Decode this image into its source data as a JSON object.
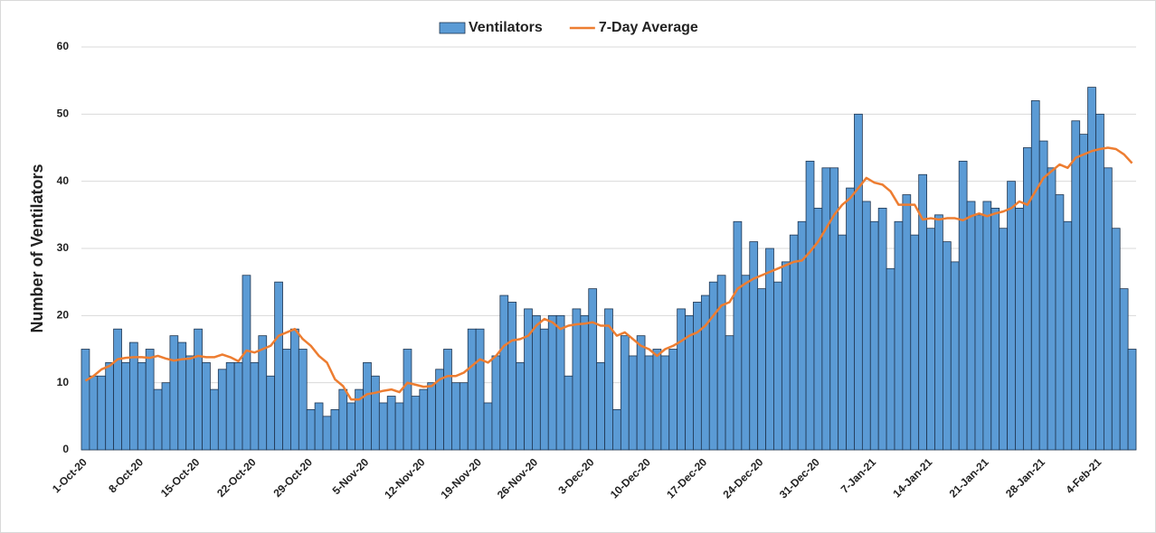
{
  "chart_data": {
    "type": "bar",
    "ylabel": "Number of Ventilators",
    "categories": [
      "1-Oct-20",
      null,
      null,
      null,
      null,
      null,
      null,
      "8-Oct-20",
      null,
      null,
      null,
      null,
      null,
      null,
      "15-Oct-20",
      null,
      null,
      null,
      null,
      null,
      null,
      "22-Oct-20",
      null,
      null,
      null,
      null,
      null,
      null,
      "29-Oct-20",
      null,
      null,
      null,
      null,
      null,
      null,
      "5-Nov-20",
      null,
      null,
      null,
      null,
      null,
      null,
      "12-Nov-20",
      null,
      null,
      null,
      null,
      null,
      null,
      "19-Nov-20",
      null,
      null,
      null,
      null,
      null,
      null,
      "26-Nov-20",
      null,
      null,
      null,
      null,
      null,
      null,
      "3-Dec-20",
      null,
      null,
      null,
      null,
      null,
      null,
      "10-Dec-20",
      null,
      null,
      null,
      null,
      null,
      null,
      "17-Dec-20",
      null,
      null,
      null,
      null,
      null,
      null,
      "24-Dec-20",
      null,
      null,
      null,
      null,
      null,
      null,
      "31-Dec-20",
      null,
      null,
      null,
      null,
      null,
      null,
      "7-Jan-21",
      null,
      null,
      null,
      null,
      null,
      null,
      "14-Jan-21",
      null,
      null,
      null,
      null,
      null,
      null,
      "21-Jan-21",
      null,
      null,
      null,
      null,
      null,
      null,
      "28-Jan-21",
      null,
      null,
      null,
      null,
      null,
      null,
      "4-Feb-21",
      null,
      null,
      null,
      null
    ],
    "series": [
      {
        "name": "Ventilators",
        "type": "bar",
        "color": "#5b9bd5",
        "values": [
          15,
          11,
          11,
          13,
          18,
          13,
          16,
          13,
          15,
          9,
          10,
          17,
          16,
          14,
          18,
          13,
          9,
          12,
          13,
          13,
          26,
          13,
          17,
          11,
          25,
          15,
          18,
          15,
          6,
          7,
          5,
          6,
          9,
          7,
          9,
          13,
          11,
          7,
          8,
          7,
          15,
          8,
          9,
          10,
          12,
          15,
          10,
          10,
          18,
          18,
          7,
          14,
          23,
          22,
          13,
          21,
          20,
          18,
          20,
          20,
          11,
          21,
          20,
          24,
          13,
          21,
          6,
          17,
          14,
          17,
          14,
          15,
          14,
          15,
          21,
          20,
          22,
          23,
          25,
          26,
          17,
          34,
          26,
          31,
          24,
          30,
          25,
          28,
          32,
          34,
          43,
          36,
          42,
          42,
          32,
          39,
          50,
          37,
          34,
          36,
          27,
          34,
          38,
          32,
          41,
          33,
          35,
          31,
          28,
          43,
          37,
          35,
          37,
          36,
          33,
          40,
          36,
          45,
          52,
          46,
          42,
          38,
          34,
          49,
          47,
          54,
          50,
          42,
          33,
          24,
          15
        ]
      },
      {
        "name": "7-Day Average",
        "type": "line",
        "color": "#ed7d31",
        "values": [
          10.3,
          11,
          12,
          12.5,
          13.5,
          13.7,
          13.8,
          13.8,
          13.7,
          14,
          13.6,
          13.3,
          13.5,
          13.6,
          14,
          13.8,
          13.8,
          14.2,
          13.8,
          13.2,
          14.8,
          14.5,
          15,
          15.5,
          17,
          17.5,
          18,
          16.5,
          15.5,
          14,
          13,
          10.5,
          9.5,
          7.5,
          7.5,
          8.3,
          8.5,
          8.8,
          9,
          8.6,
          10,
          9.7,
          9.4,
          9.5,
          10.5,
          11,
          11,
          11.5,
          12.5,
          13.5,
          13,
          14,
          15.5,
          16.3,
          16.5,
          17,
          18.5,
          19.5,
          19,
          18,
          18.5,
          18.7,
          18.8,
          19,
          18.5,
          18.5,
          17,
          17.5,
          16.5,
          15.5,
          15,
          14,
          15,
          15.5,
          16.2,
          17,
          17.5,
          18.5,
          20,
          21.5,
          22,
          24,
          24.8,
          25.5,
          26,
          26.5,
          27,
          27.5,
          28,
          28.2,
          29.5,
          31,
          33,
          35,
          36.5,
          37.5,
          39,
          40.5,
          39.8,
          39.5,
          38.5,
          36.5,
          36.5,
          36.5,
          34.3,
          34.5,
          34.3,
          34.5,
          34.5,
          34.2,
          34.8,
          35.2,
          34.8,
          35.2,
          35.5,
          36,
          37,
          36.5,
          38.5,
          40.5,
          41.5,
          42.5,
          42,
          43.5,
          44,
          44.5,
          44.8,
          45,
          44.8,
          44,
          42.7
        ]
      }
    ],
    "ylim": [
      0,
      60
    ],
    "yticks": [
      0,
      10,
      20,
      30,
      40,
      50,
      60
    ],
    "grid": true,
    "legend": "top"
  }
}
